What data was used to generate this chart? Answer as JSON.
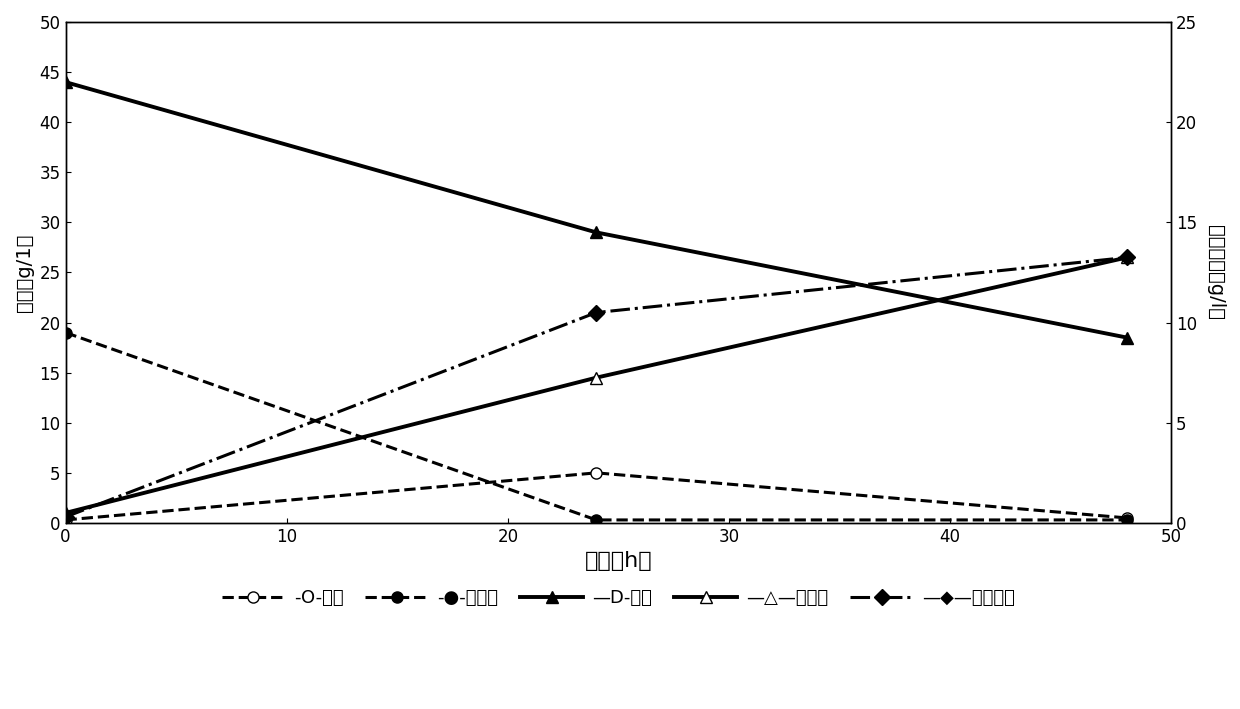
{
  "xlabel": "时间（h）",
  "ylabel_left": "浓度（g/1）",
  "ylabel_right": "细胞干重（g/l）",
  "xlim": [
    0,
    50
  ],
  "ylim_left": [
    0,
    50
  ],
  "ylim_right": [
    0,
    25
  ],
  "xticks": [
    0,
    10,
    20,
    30,
    40,
    50
  ],
  "yticks_left": [
    0,
    5,
    10,
    15,
    20,
    25,
    30,
    35,
    40,
    45,
    50
  ],
  "yticks_right": [
    0,
    5,
    10,
    15,
    20,
    25
  ],
  "ethanol": {
    "x": [
      0,
      24,
      48
    ],
    "y": [
      0.3,
      5.0,
      0.5
    ],
    "color": "#000000",
    "linestyle": "dashed",
    "marker": "o",
    "markerfacecolor": "white",
    "linewidth": 2.2,
    "markersize": 8,
    "label": "-O-乙醇"
  },
  "glucose": {
    "x": [
      0,
      24,
      48
    ],
    "y": [
      19.0,
      0.3,
      0.3
    ],
    "color": "#000000",
    "linestyle": "dashed",
    "marker": "o",
    "markerfacecolor": "#000000",
    "linewidth": 2.2,
    "markersize": 8,
    "label": "-●-葡萄糖"
  },
  "dxylose": {
    "x": [
      0,
      24,
      48
    ],
    "y": [
      44.0,
      29.0,
      18.5
    ],
    "color": "#000000",
    "linestyle": "solid",
    "marker": "^",
    "markerfacecolor": "#000000",
    "linewidth": 2.8,
    "markersize": 9,
    "label": "D-木糖"
  },
  "xylitol": {
    "x": [
      0,
      24,
      48
    ],
    "y": [
      1.0,
      14.5,
      26.5
    ],
    "color": "#000000",
    "linestyle": "solid",
    "marker": "^",
    "markerfacecolor": "white",
    "linewidth": 2.8,
    "markersize": 9,
    "label": "木糖醇"
  },
  "cdw": {
    "x": [
      0,
      24,
      48
    ],
    "y": [
      0.3,
      10.5,
      13.25
    ],
    "color": "#000000",
    "linestyle": "dashdot",
    "marker": "D",
    "markerfacecolor": "#000000",
    "linewidth": 2.2,
    "markersize": 8,
    "label": "细胞干重"
  },
  "legend_entries": [
    {
      "label": "-O-乙醇",
      "linestyle": "dashed",
      "marker": "o",
      "mfc": "white"
    },
    {
      "label": "-●-葡萄糖",
      "linestyle": "dashed",
      "marker": "o",
      "mfc": "black"
    },
    {
      "label": "D-木糖",
      "linestyle": "solid",
      "marker": "^",
      "mfc": "black"
    },
    {
      "label": "木糖醇",
      "linestyle": "solid",
      "marker": "^",
      "mfc": "white"
    },
    {
      "label": "细胞干重",
      "linestyle": "dashdot",
      "marker": "D",
      "mfc": "black"
    }
  ],
  "background_color": "#ffffff"
}
